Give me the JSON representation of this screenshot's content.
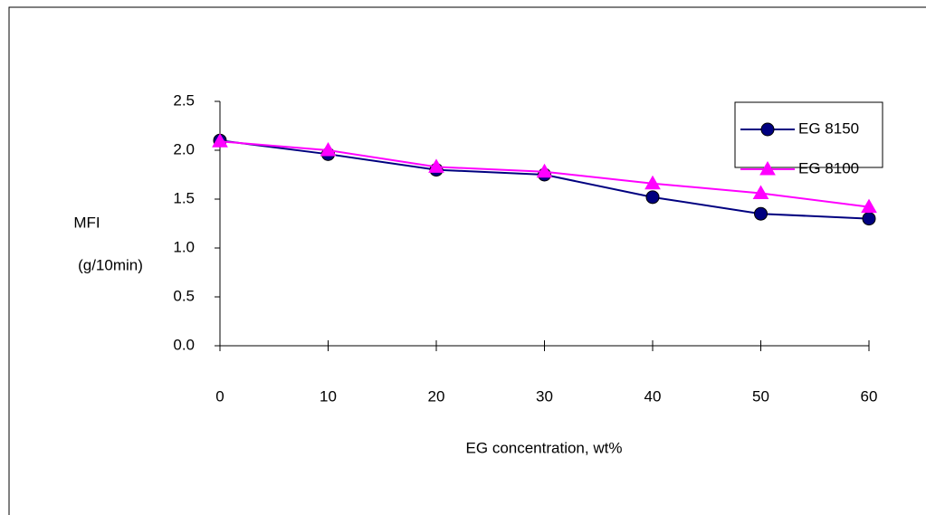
{
  "chart_data": {
    "type": "line",
    "y_label": [
      "MFI",
      "(g/10min)"
    ],
    "x_label": "EG concentration, wt%",
    "x": [
      0,
      10,
      20,
      30,
      40,
      50,
      60
    ],
    "xlim": [
      0,
      60
    ],
    "xticks": [
      0,
      10,
      20,
      30,
      40,
      50,
      60
    ],
    "ylim": [
      0,
      2.5
    ],
    "yticks": [
      {
        "value": 0,
        "label": "0.0"
      },
      {
        "value": 0.5,
        "label": "0.5"
      },
      {
        "value": 1,
        "label": "1.0"
      },
      {
        "value": 1.5,
        "label": "1.5"
      },
      {
        "value": 2,
        "label": "2.0"
      },
      {
        "value": 2.5,
        "label": "2.5"
      }
    ],
    "grid": false,
    "legend": "top-right",
    "series": [
      {
        "name": "EG 8150",
        "color": "#000080",
        "marker": "circle",
        "values": [
          2.1,
          1.96,
          1.8,
          1.75,
          1.52,
          1.35,
          1.3
        ]
      },
      {
        "name": "EG 8100",
        "color": "#ff00ff",
        "marker": "triangle",
        "values": [
          2.09,
          2.0,
          1.83,
          1.78,
          1.66,
          1.56,
          1.42
        ]
      }
    ]
  }
}
